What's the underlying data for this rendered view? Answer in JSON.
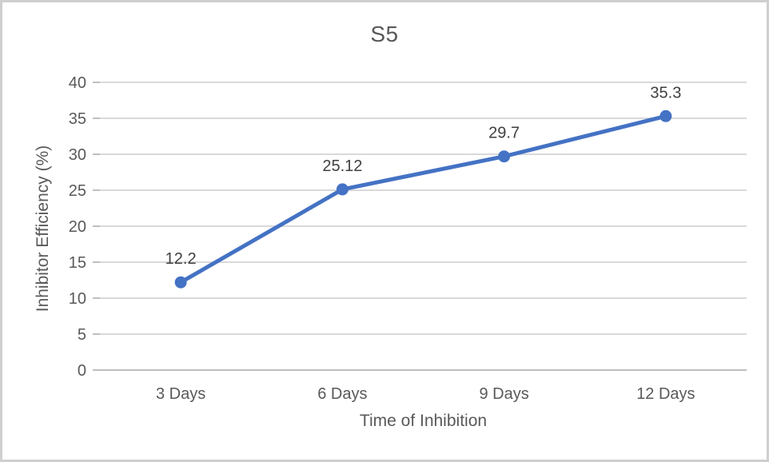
{
  "chart_data": {
    "type": "line",
    "title": "S5",
    "xlabel": "Time of Inhibition",
    "ylabel": "Inhibitor Efficiency (%)",
    "categories": [
      "3 Days",
      "6 Days",
      "9 Days",
      "12 Days"
    ],
    "series": [
      {
        "name": "S5",
        "values": [
          12.2,
          25.12,
          29.7,
          35.3
        ],
        "point_labels": [
          "12.2",
          "25.12",
          "29.7",
          "35.3"
        ],
        "color": "#4472C4"
      }
    ],
    "ylim": [
      0,
      40
    ],
    "ytick_step": 5,
    "ytick_labels": [
      "0",
      "5",
      "10",
      "15",
      "20",
      "25",
      "30",
      "35",
      "40"
    ],
    "grid": true,
    "legend": "none",
    "colors": {
      "series_line": "#4472C4",
      "gridline": "#D9D9D9",
      "axis_line": "#BFBFBF",
      "axis_text": "#595959",
      "data_label_text": "#404040",
      "title_text": "#595959",
      "background": "#FFFFFF",
      "frame_border": "#CFCFCF"
    }
  }
}
